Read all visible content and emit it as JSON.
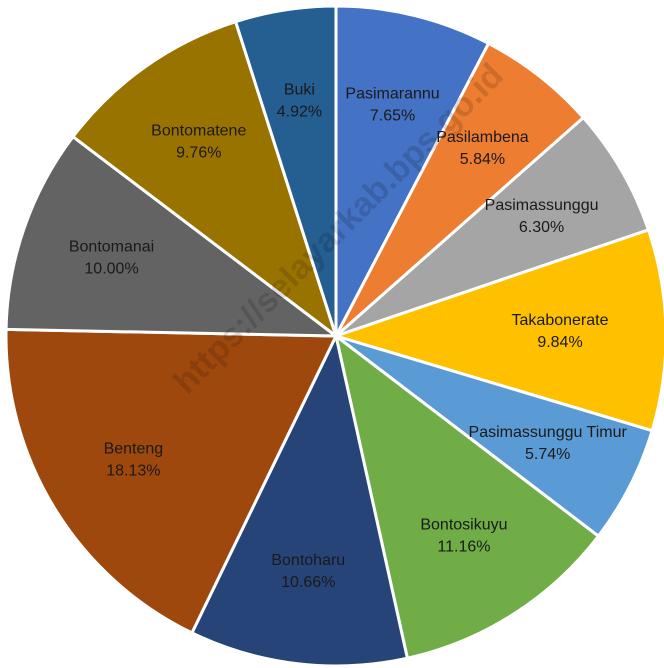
{
  "chart_data": {
    "type": "pie",
    "categories": [
      "Pasimarannu",
      "Pasilambena",
      "Pasimassunggu",
      "Takabonerate",
      "Pasimassunggu Timur",
      "Bontosikuyu",
      "Bontoharu",
      "Benteng",
      "Bontomanai",
      "Bontomatene",
      "Buki"
    ],
    "values": [
      7.65,
      5.84,
      6.3,
      9.84,
      5.74,
      11.16,
      10.66,
      18.13,
      10.0,
      9.76,
      4.92
    ],
    "value_labels": [
      "7.65%",
      "5.84%",
      "6.30%",
      "9.84%",
      "5.74%",
      "11.16%",
      "10.66%",
      "18.13%",
      "10.00%",
      "9.76%",
      "4.92%"
    ],
    "colors": [
      "#4472c4",
      "#ed7d31",
      "#a5a5a5",
      "#ffc000",
      "#5b9bd5",
      "#70ad47",
      "#264478",
      "#9e480e",
      "#636363",
      "#997300",
      "#255e91"
    ],
    "watermark": "https://selayarkab.bps.go.id"
  }
}
